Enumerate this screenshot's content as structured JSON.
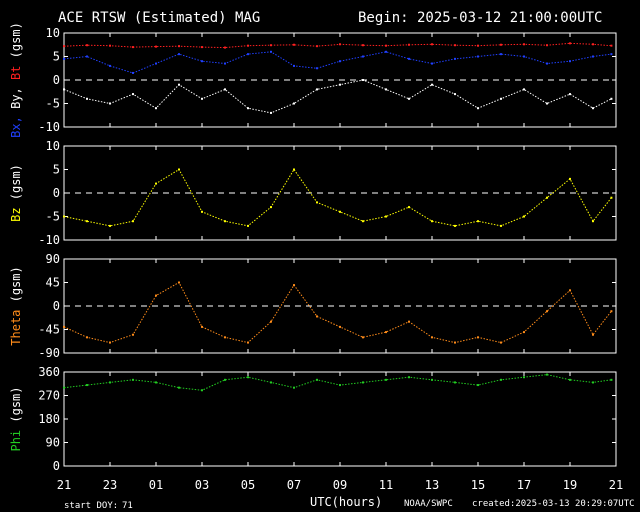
{
  "header": {
    "title": "ACE RTSW (Estimated) MAG",
    "begin": "Begin: 2025-03-12 21:00:00UTC"
  },
  "footer": {
    "start_doy_label": "start DOY:",
    "start_doy": "71",
    "xlabel": "UTC(hours)",
    "source": "NOAA/SWPC",
    "created": "created:2025-03-13 20:29:07UTC"
  },
  "colors": {
    "background": "#000000",
    "axes": "#ffffff",
    "bt": "#ff2020",
    "bx": "#2040ff",
    "by": "#ffffff",
    "bz": "#ffff00",
    "theta": "#ff8c1a",
    "phi": "#22cc22"
  },
  "chart_data": {
    "type": "scatter",
    "x_ticks": [
      "21",
      "23",
      "01",
      "03",
      "05",
      "07",
      "09",
      "11",
      "13",
      "15",
      "17",
      "19",
      "21"
    ],
    "x_range_hours": [
      0,
      24
    ],
    "panels": [
      {
        "id": "bt-bx-by",
        "ylabel_parts": [
          {
            "text": "Bx,",
            "color": "#2040ff"
          },
          {
            "text": " By,",
            "color": "#ffffff"
          },
          {
            "text": " Bt",
            "color": "#ff2020"
          },
          {
            "text": " (gsm)",
            "color": "#ffffff"
          }
        ],
        "ylim": [
          -10,
          10
        ],
        "ytick_values": [
          -10,
          -5,
          0,
          5,
          10
        ],
        "ytick_labels": [
          "-10",
          "-5",
          "0",
          "5",
          "10"
        ],
        "zero_line": true,
        "series": [
          {
            "name": "Bt",
            "color": "#ff2020",
            "x": [
              0,
              1,
              2,
              3,
              4,
              5,
              6,
              7,
              8,
              9,
              10,
              11,
              12,
              13,
              14,
              15,
              16,
              17,
              18,
              19,
              20,
              21,
              22,
              23,
              23.8
            ],
            "y": [
              7.2,
              7.4,
              7.3,
              7.0,
              7.1,
              7.2,
              7.0,
              6.9,
              7.3,
              7.4,
              7.5,
              7.2,
              7.6,
              7.4,
              7.3,
              7.5,
              7.6,
              7.4,
              7.3,
              7.5,
              7.6,
              7.4,
              7.8,
              7.6,
              7.3
            ]
          },
          {
            "name": "Bx",
            "color": "#2040ff",
            "x": [
              0,
              1,
              2,
              3,
              4,
              5,
              6,
              7,
              8,
              9,
              10,
              11,
              12,
              13,
              14,
              15,
              16,
              17,
              18,
              19,
              20,
              21,
              22,
              23,
              23.8
            ],
            "y": [
              4.5,
              5.0,
              3.0,
              1.5,
              3.5,
              5.5,
              4.0,
              3.5,
              5.5,
              6.0,
              3.0,
              2.5,
              4.0,
              5.0,
              6.0,
              4.5,
              3.5,
              4.5,
              5.0,
              5.5,
              5.0,
              3.5,
              4.0,
              5.0,
              5.5
            ]
          },
          {
            "name": "By",
            "color": "#ffffff",
            "x": [
              0,
              1,
              2,
              3,
              4,
              5,
              6,
              7,
              8,
              9,
              10,
              11,
              12,
              13,
              14,
              15,
              16,
              17,
              18,
              19,
              20,
              21,
              22,
              23,
              23.8
            ],
            "y": [
              -2,
              -4,
              -5,
              -3,
              -6,
              -1,
              -4,
              -2,
              -6,
              -7,
              -5,
              -2,
              -1,
              0,
              -2,
              -4,
              -1,
              -3,
              -6,
              -4,
              -2,
              -5,
              -3,
              -6,
              -4
            ]
          }
        ]
      },
      {
        "id": "bz",
        "ylabel_parts": [
          {
            "text": "Bz",
            "color": "#ffff00"
          },
          {
            "text": " (gsm)",
            "color": "#ffffff"
          }
        ],
        "ylim": [
          -10,
          10
        ],
        "ytick_values": [
          -10,
          -5,
          0,
          5,
          10
        ],
        "ytick_labels": [
          "-10",
          "-5",
          "0",
          "5",
          "10"
        ],
        "zero_line": true,
        "series": [
          {
            "name": "Bz",
            "color": "#ffff00",
            "x": [
              0,
              1,
              2,
              3,
              4,
              5,
              6,
              7,
              8,
              9,
              10,
              11,
              12,
              13,
              14,
              15,
              16,
              17,
              18,
              19,
              20,
              21,
              22,
              23,
              23.8
            ],
            "y": [
              -5,
              -6,
              -7,
              -6,
              2,
              5,
              -4,
              -6,
              -7,
              -3,
              5,
              -2,
              -4,
              -6,
              -5,
              -3,
              -6,
              -7,
              -6,
              -7,
              -5,
              -1,
              3,
              -6,
              -1
            ]
          }
        ]
      },
      {
        "id": "theta",
        "ylabel_parts": [
          {
            "text": "Theta",
            "color": "#ff8c1a"
          },
          {
            "text": " (gsm)",
            "color": "#ffffff"
          }
        ],
        "ylim": [
          -90,
          90
        ],
        "ytick_values": [
          -90,
          -45,
          0,
          45,
          90
        ],
        "ytick_labels": [
          "-90",
          "-45",
          "0",
          "45",
          "90"
        ],
        "zero_line": true,
        "series": [
          {
            "name": "Theta",
            "color": "#ff8c1a",
            "x": [
              0,
              1,
              2,
              3,
              4,
              5,
              6,
              7,
              8,
              9,
              10,
              11,
              12,
              13,
              14,
              15,
              16,
              17,
              18,
              19,
              20,
              21,
              22,
              23,
              23.8
            ],
            "y": [
              -40,
              -60,
              -70,
              -55,
              20,
              45,
              -40,
              -60,
              -70,
              -30,
              40,
              -20,
              -40,
              -60,
              -50,
              -30,
              -60,
              -70,
              -60,
              -70,
              -50,
              -10,
              30,
              -55,
              -10
            ]
          }
        ]
      },
      {
        "id": "phi",
        "ylabel_parts": [
          {
            "text": "Phi",
            "color": "#22cc22"
          },
          {
            "text": " (gsm)",
            "color": "#ffffff"
          }
        ],
        "ylim": [
          0,
          360
        ],
        "ytick_values": [
          0,
          90,
          180,
          270,
          360
        ],
        "ytick_labels": [
          "0",
          "90",
          "180",
          "270",
          "360"
        ],
        "zero_line": false,
        "series": [
          {
            "name": "Phi",
            "color": "#22cc22",
            "x": [
              0,
              1,
              2,
              3,
              4,
              5,
              6,
              7,
              8,
              9,
              10,
              11,
              12,
              13,
              14,
              15,
              16,
              17,
              18,
              19,
              20,
              21,
              22,
              23,
              23.8
            ],
            "y": [
              300,
              310,
              320,
              330,
              320,
              300,
              290,
              330,
              340,
              320,
              300,
              330,
              310,
              320,
              330,
              340,
              330,
              320,
              310,
              330,
              340,
              350,
              330,
              320,
              330
            ]
          }
        ]
      }
    ]
  }
}
